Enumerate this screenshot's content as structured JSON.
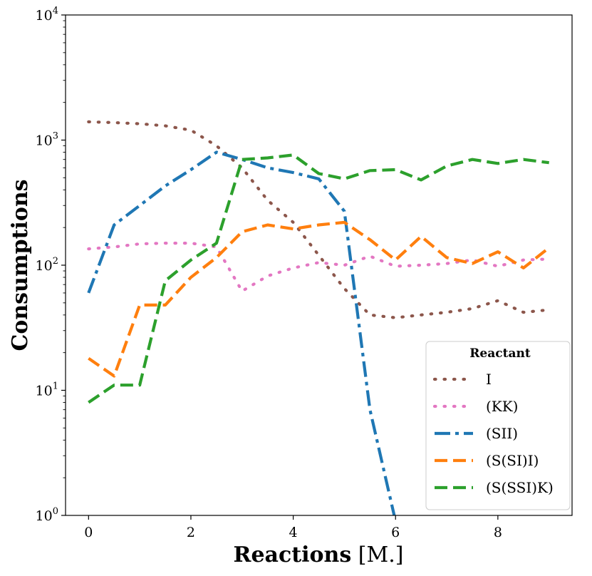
{
  "chart_data": {
    "type": "line",
    "title": "",
    "xlabel_bold": "Reactions",
    "xlabel_unit": "[M.]",
    "ylabel": "Consumptions",
    "yscale": "log",
    "xlim": [
      -0.45,
      9.45
    ],
    "ylim": [
      1,
      10000
    ],
    "xticks": [
      0,
      2,
      4,
      6,
      8
    ],
    "xtick_labels": [
      "0",
      "2",
      "4",
      "6",
      "8"
    ],
    "yticks": [
      1,
      10,
      100,
      1000,
      10000
    ],
    "ytick_labels": [
      {
        "base": "10",
        "exp": "0"
      },
      {
        "base": "10",
        "exp": "1"
      },
      {
        "base": "10",
        "exp": "2"
      },
      {
        "base": "10",
        "exp": "3"
      },
      {
        "base": "10",
        "exp": "4"
      }
    ],
    "grid": false,
    "legend": {
      "title": "Reactant",
      "position": "lower-right"
    },
    "x": [
      0,
      0.5,
      1,
      1.5,
      2,
      2.5,
      3,
      3.5,
      4,
      4.5,
      5,
      5.5,
      6,
      6.5,
      7,
      7.5,
      8,
      8.5,
      9
    ],
    "series": [
      {
        "name": "I",
        "color": "#8c564b",
        "style": "dotted",
        "values": [
          1400,
          1380,
          1350,
          1300,
          1200,
          900,
          600,
          330,
          220,
          120,
          65,
          40,
          38,
          40,
          42,
          45,
          52,
          42,
          44
        ]
      },
      {
        "name": "(KK)",
        "color": "#e377c2",
        "style": "dotted",
        "values": [
          135,
          140,
          148,
          150,
          150,
          140,
          62,
          82,
          95,
          105,
          100,
          118,
          98,
          100,
          103,
          110,
          98,
          110,
          112
        ]
      },
      {
        "name": "(SII)",
        "color": "#1f77b4",
        "style": "dashdot",
        "values": [
          60,
          210,
          300,
          430,
          580,
          800,
          700,
          600,
          550,
          490,
          270,
          7,
          0.9,
          null,
          null,
          null,
          null,
          null,
          null
        ]
      },
      {
        "name": "(S(SI)I)",
        "color": "#ff7f0e",
        "style": "dashed",
        "values": [
          18,
          13,
          48,
          48,
          80,
          115,
          185,
          210,
          195,
          210,
          220,
          160,
          110,
          170,
          115,
          103,
          128,
          95,
          138
        ]
      },
      {
        "name": "(S(SSI)K)",
        "color": "#2ca02c",
        "style": "dashed",
        "values": [
          8,
          11,
          11,
          75,
          110,
          150,
          700,
          720,
          760,
          540,
          490,
          570,
          580,
          480,
          620,
          700,
          650,
          700,
          660
        ]
      }
    ]
  }
}
